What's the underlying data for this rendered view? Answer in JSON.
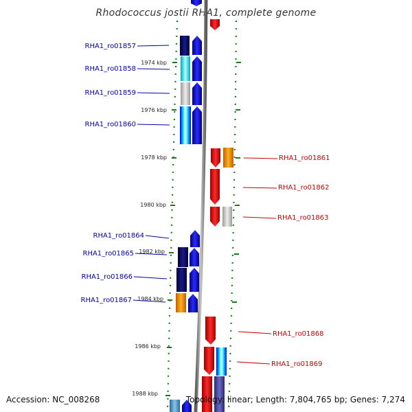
{
  "title": "Rhodococcus jostii RHA1, complete genome",
  "footer": {
    "accession": "Accession: NC_008268",
    "topology": "Topology: linear; Length: 7,804,765 bp; Genes: 7,274"
  },
  "ticks": [
    "1974 kbp",
    "1976 kbp",
    "1978 kbp",
    "1980 kbp",
    "1982 kbp",
    "1984 kbp",
    "1986 kbp",
    "1988 kbp"
  ],
  "genes_left": [
    "RHA1_ro01857",
    "RHA1_ro01858",
    "RHA1_ro01859",
    "RHA1_ro01860",
    "RHA1_ro01864",
    "RHA1_ro01865",
    "RHA1_ro01866",
    "RHA1_ro01867"
  ],
  "genes_right": [
    "RHA1_ro01861",
    "RHA1_ro01862",
    "RHA1_ro01863",
    "RHA1_ro01868",
    "RHA1_ro01869"
  ],
  "colors": {
    "forward": "#0000ee",
    "reverse": "#ee0000",
    "label_left": "#0000aa",
    "label_right": "#cc0000",
    "backbone": "#808080",
    "dots": "#1a7a1a",
    "navy": "#000066",
    "cyan": "#00e5ff",
    "grey": "#c0c0c0",
    "orange": "#ee8800",
    "slate": "#4a4a99",
    "steel": "#4488bb"
  }
}
